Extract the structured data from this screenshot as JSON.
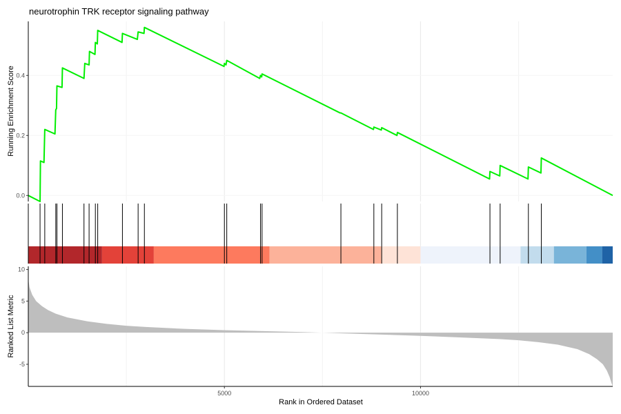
{
  "chart_data": {
    "type": "line",
    "title": "neurotrophin TRK receptor signaling pathway",
    "xlabel": "Rank in Ordered Dataset",
    "x_ticks": [
      5000,
      10000
    ],
    "xlim": [
      0,
      14900
    ],
    "grid": true,
    "panels": {
      "enrichment": {
        "ylabel": "Running Enrichment Score",
        "ylim": [
          -0.02,
          0.58
        ],
        "y_ticks": [
          0.0,
          0.2,
          0.4
        ],
        "line_color": "#00ee00",
        "points": [
          [
            0,
            0.0
          ],
          [
            300,
            -0.02
          ],
          [
            310,
            0.115
          ],
          [
            400,
            0.11
          ],
          [
            420,
            0.22
          ],
          [
            680,
            0.205
          ],
          [
            700,
            0.285
          ],
          [
            720,
            0.29
          ],
          [
            730,
            0.365
          ],
          [
            860,
            0.36
          ],
          [
            870,
            0.425
          ],
          [
            1420,
            0.39
          ],
          [
            1440,
            0.44
          ],
          [
            1550,
            0.435
          ],
          [
            1560,
            0.48
          ],
          [
            1700,
            0.47
          ],
          [
            1710,
            0.51
          ],
          [
            1760,
            0.505
          ],
          [
            1770,
            0.55
          ],
          [
            2390,
            0.51
          ],
          [
            2400,
            0.54
          ],
          [
            2780,
            0.52
          ],
          [
            2800,
            0.545
          ],
          [
            2950,
            0.54
          ],
          [
            2960,
            0.56
          ],
          [
            4990,
            0.43
          ],
          [
            5000,
            0.44
          ],
          [
            5040,
            0.435
          ],
          [
            5060,
            0.45
          ],
          [
            5900,
            0.39
          ],
          [
            5920,
            0.4
          ],
          [
            5950,
            0.395
          ],
          [
            5960,
            0.405
          ],
          [
            7950,
            0.275
          ],
          [
            7970,
            0.275
          ],
          [
            8800,
            0.22
          ],
          [
            8810,
            0.228
          ],
          [
            9000,
            0.218
          ],
          [
            9010,
            0.226
          ],
          [
            9400,
            0.2
          ],
          [
            9410,
            0.21
          ],
          [
            11760,
            0.055
          ],
          [
            11770,
            0.08
          ],
          [
            12020,
            0.065
          ],
          [
            12030,
            0.1
          ],
          [
            12740,
            0.055
          ],
          [
            12750,
            0.095
          ],
          [
            13070,
            0.075
          ],
          [
            13080,
            0.125
          ],
          [
            14900,
            0.0
          ]
        ]
      },
      "hits": {
        "positions": [
          300,
          420,
          700,
          730,
          870,
          1420,
          1550,
          1710,
          1770,
          2400,
          2800,
          2960,
          5000,
          5060,
          5920,
          5960,
          7970,
          8810,
          9010,
          9410,
          11770,
          12030,
          12750,
          13080
        ],
        "color": "#000000"
      },
      "color_band": {
        "segments": [
          {
            "start": 0,
            "end": 1880,
            "color": "#b2272b"
          },
          {
            "start": 1880,
            "end": 3200,
            "color": "#e34239"
          },
          {
            "start": 3200,
            "end": 6150,
            "color": "#fd7a5e"
          },
          {
            "start": 6150,
            "end": 9000,
            "color": "#fcb29a"
          },
          {
            "start": 9000,
            "end": 10000,
            "color": "#fee3d7"
          },
          {
            "start": 10000,
            "end": 12550,
            "color": "#eef3fb"
          },
          {
            "start": 12550,
            "end": 13400,
            "color": "#c2dced"
          },
          {
            "start": 13400,
            "end": 14230,
            "color": "#79b4d9"
          },
          {
            "start": 14230,
            "end": 14630,
            "color": "#438fc7"
          },
          {
            "start": 14630,
            "end": 14900,
            "color": "#1f63a6"
          }
        ]
      },
      "ranked": {
        "ylabel": "Ranked List Metric",
        "ylim": [
          -8.5,
          10.5
        ],
        "y_ticks": [
          -5,
          0,
          5,
          10
        ],
        "fill_color": "#bebebe",
        "points": [
          [
            0,
            8.5
          ],
          [
            30,
            7.2
          ],
          [
            100,
            6.0
          ],
          [
            200,
            5.0
          ],
          [
            350,
            4.2
          ],
          [
            500,
            3.6
          ],
          [
            700,
            3.0
          ],
          [
            1000,
            2.4
          ],
          [
            1500,
            1.8
          ],
          [
            2000,
            1.4
          ],
          [
            2500,
            1.1
          ],
          [
            3000,
            0.9
          ],
          [
            4000,
            0.6
          ],
          [
            5000,
            0.4
          ],
          [
            6000,
            0.25
          ],
          [
            7000,
            0.1
          ],
          [
            7500,
            0.0
          ],
          [
            8000,
            -0.1
          ],
          [
            9000,
            -0.3
          ],
          [
            10000,
            -0.5
          ],
          [
            11000,
            -0.75
          ],
          [
            12000,
            -1.0
          ],
          [
            12500,
            -1.2
          ],
          [
            13000,
            -1.5
          ],
          [
            13500,
            -1.9
          ],
          [
            14000,
            -2.6
          ],
          [
            14300,
            -3.4
          ],
          [
            14500,
            -4.2
          ],
          [
            14650,
            -5.0
          ],
          [
            14750,
            -6.0
          ],
          [
            14820,
            -7.0
          ],
          [
            14870,
            -8.0
          ],
          [
            14900,
            -8.5
          ]
        ]
      }
    }
  }
}
